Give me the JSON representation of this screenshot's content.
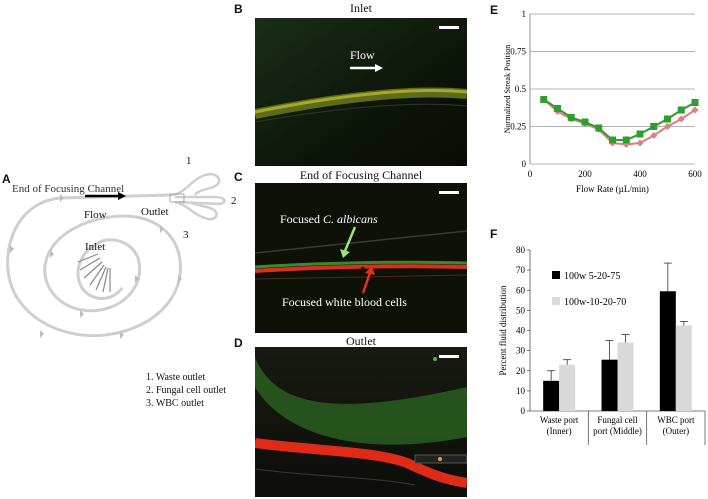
{
  "panels": {
    "A": {
      "letter": "A",
      "label_end_channel": "End of Focusing Channel",
      "label_flow": "Flow",
      "label_outlet": "Outlet",
      "label_inlet": "Inlet",
      "outlet_numbers": [
        "1",
        "2",
        "3"
      ],
      "legend": [
        "1.   Waste outlet",
        "2.   Fungal cell outlet",
        "3.   WBC outlet"
      ]
    },
    "B": {
      "letter": "B",
      "title": "Inlet",
      "flow_label": "Flow"
    },
    "C": {
      "letter": "C",
      "title": "End of Focusing Channel",
      "focused_prefix": "Focused ",
      "focused_species": "C. albicans",
      "focused_wbc": "Focused white blood cells"
    },
    "D": {
      "letter": "D",
      "title": "Outlet"
    },
    "E": {
      "letter": "E"
    },
    "F": {
      "letter": "F"
    }
  },
  "colors": {
    "green_series": "#2e9e2e",
    "pink_series": "#d98080",
    "bar_black": "#000000",
    "bar_light": "#d9d9d9",
    "stream_green": "#3f8f2a",
    "stream_red": "#e03020"
  },
  "chart_data": [
    {
      "type": "line",
      "xlabel": "Flow Rate (µL/min)",
      "ylabel": "Normalized Streak Position",
      "xlim": [
        0,
        600
      ],
      "ylim": [
        0,
        1
      ],
      "xticks": [
        "0",
        "200",
        "400",
        "600"
      ],
      "yticks": [
        "0",
        "0.25",
        "0.5",
        "0.75",
        "1"
      ],
      "grid": true,
      "series": [
        {
          "x": [
            50,
            100,
            150,
            200,
            250,
            300,
            350,
            400,
            450,
            500,
            550,
            600
          ],
          "values": [
            0.43,
            0.37,
            0.31,
            0.28,
            0.24,
            0.16,
            0.16,
            0.2,
            0.25,
            0.3,
            0.36,
            0.41
          ]
        },
        {
          "x": [
            50,
            100,
            150,
            200,
            250,
            300,
            350,
            400,
            450,
            500,
            550,
            600
          ],
          "values": [
            0.43,
            0.35,
            0.3,
            0.27,
            0.23,
            0.14,
            0.13,
            0.14,
            0.19,
            0.25,
            0.3,
            0.36
          ]
        }
      ]
    },
    {
      "type": "bar",
      "ylabel": "Percent fluid distribution",
      "ylim": [
        0,
        80
      ],
      "yticks": [
        "0",
        "10",
        "20",
        "30",
        "40",
        "50",
        "60",
        "70",
        "80"
      ],
      "categories": [
        "Waste port (Inner)",
        "Fungal cell port (Middle)",
        "WBC port (Outer)"
      ],
      "category_lines": [
        [
          "Waste port",
          "(Inner)"
        ],
        [
          "Fungal cell",
          "port (Middle)"
        ],
        [
          "WBC port",
          "(Outer)"
        ]
      ],
      "legend_position": "top-left",
      "series": [
        {
          "name": "100w 5-20-75",
          "values": [
            15,
            25.5,
            59.5
          ],
          "errors": [
            5,
            9.5,
            14
          ]
        },
        {
          "name": "100w-10-20-70",
          "values": [
            23,
            34,
            42.5
          ],
          "errors": [
            2.5,
            4,
            2
          ]
        }
      ]
    }
  ]
}
